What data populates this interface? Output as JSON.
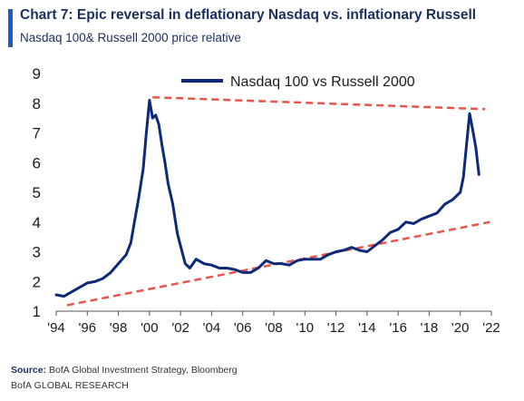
{
  "header": {
    "title": "Chart 7: Epic reversal in deflationary Nasdaq vs. inflationary Russell",
    "subtitle": "Nasdaq 100& Russell 2000 price relative"
  },
  "footer": {
    "source_label": "Source:",
    "source_text": "BofA Global Investment Strategy, Bloomberg",
    "brand": "BofA GLOBAL RESEARCH"
  },
  "colors": {
    "series": "#0d2a78",
    "trend": "#e8554a",
    "accent": "#1f5bc4"
  },
  "chart_data": {
    "type": "line",
    "title": "",
    "xlabel": "",
    "ylabel": "",
    "xlim": [
      1994,
      2022
    ],
    "ylim": [
      1,
      9
    ],
    "grid": false,
    "legend_position": "top-right",
    "x_tick_labels": [
      {
        "value": 1994,
        "label": "'94"
      },
      {
        "value": 1996,
        "label": "'96"
      },
      {
        "value": 1998,
        "label": "'98"
      },
      {
        "value": 2000,
        "label": "'00"
      },
      {
        "value": 2002,
        "label": "'02"
      },
      {
        "value": 2004,
        "label": "'04"
      },
      {
        "value": 2006,
        "label": "'06"
      },
      {
        "value": 2008,
        "label": "'08"
      },
      {
        "value": 2010,
        "label": "'10"
      },
      {
        "value": 2012,
        "label": "'12"
      },
      {
        "value": 2014,
        "label": "'14"
      },
      {
        "value": 2016,
        "label": "'16"
      },
      {
        "value": 2018,
        "label": "'18"
      },
      {
        "value": 2020,
        "label": "'20"
      },
      {
        "value": 2022,
        "label": "'22"
      }
    ],
    "y_ticks": [
      1,
      2,
      3,
      4,
      5,
      6,
      7,
      8,
      9
    ],
    "series": [
      {
        "name": "Nasdaq 100 vs Russell 2000",
        "x": [
          1994.0,
          1994.5,
          1995.0,
          1995.5,
          1996.0,
          1996.5,
          1997.0,
          1997.5,
          1998.0,
          1998.5,
          1998.8,
          1999.0,
          1999.3,
          1999.6,
          1999.8,
          2000.0,
          2000.2,
          2000.4,
          2000.6,
          2000.8,
          2001.0,
          2001.2,
          2001.5,
          2001.8,
          2002.0,
          2002.3,
          2002.6,
          2003.0,
          2003.5,
          2004.0,
          2004.5,
          2005.0,
          2005.5,
          2006.0,
          2006.5,
          2007.0,
          2007.5,
          2008.0,
          2008.5,
          2009.0,
          2009.5,
          2010.0,
          2010.5,
          2011.0,
          2011.5,
          2012.0,
          2012.5,
          2013.0,
          2013.5,
          2014.0,
          2014.5,
          2015.0,
          2015.5,
          2016.0,
          2016.5,
          2017.0,
          2017.5,
          2018.0,
          2018.5,
          2019.0,
          2019.5,
          2020.0,
          2020.2,
          2020.4,
          2020.6,
          2020.8,
          2021.0,
          2021.2
        ],
        "values": [
          1.55,
          1.5,
          1.65,
          1.8,
          1.95,
          2.0,
          2.1,
          2.3,
          2.6,
          2.9,
          3.3,
          3.9,
          4.8,
          5.8,
          7.0,
          8.1,
          7.5,
          7.6,
          7.3,
          6.6,
          6.0,
          5.3,
          4.6,
          3.6,
          3.2,
          2.6,
          2.45,
          2.75,
          2.6,
          2.55,
          2.45,
          2.45,
          2.4,
          2.3,
          2.3,
          2.45,
          2.7,
          2.6,
          2.6,
          2.55,
          2.7,
          2.75,
          2.75,
          2.75,
          2.9,
          3.0,
          3.05,
          3.15,
          3.05,
          3.0,
          3.2,
          3.4,
          3.65,
          3.75,
          4.0,
          3.95,
          4.1,
          4.2,
          4.3,
          4.6,
          4.75,
          5.0,
          5.5,
          6.6,
          7.65,
          7.1,
          6.5,
          5.6
        ]
      }
    ],
    "trendlines": [
      {
        "style": "dashed",
        "x": [
          2000.2,
          2021.6
        ],
        "y": [
          8.2,
          7.8
        ]
      },
      {
        "style": "dashed",
        "x": [
          1994.7,
          2021.9
        ],
        "y": [
          1.2,
          4.0
        ]
      }
    ]
  }
}
